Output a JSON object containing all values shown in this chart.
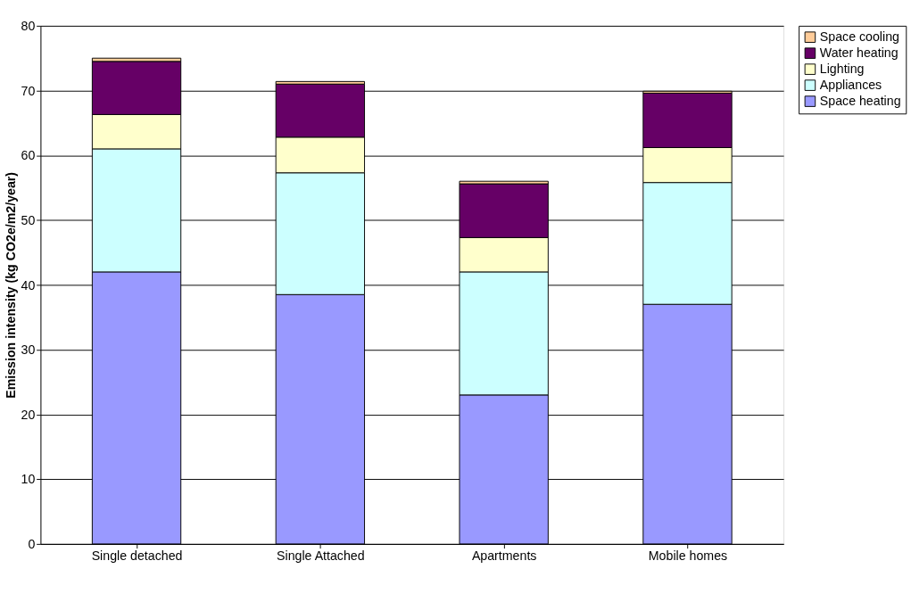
{
  "chart_data": {
    "type": "bar",
    "stacked": true,
    "ylabel": "Emission intensity (kg CO2e/m2/year)",
    "categories": [
      "Single detached",
      "Single Attached",
      "Apartments",
      "Mobile homes"
    ],
    "series": [
      {
        "name": "Space heating",
        "color": "#9999ff",
        "values": [
          42,
          38.5,
          23,
          37
        ]
      },
      {
        "name": "Appliances",
        "color": "#ccffff",
        "values": [
          19,
          18.8,
          19,
          18.8
        ]
      },
      {
        "name": "Lighting",
        "color": "#ffffcc",
        "values": [
          5.3,
          5.5,
          5.3,
          5.4
        ]
      },
      {
        "name": "Water heating",
        "color": "#660066",
        "values": [
          8.2,
          8.2,
          8.3,
          8.4
        ]
      },
      {
        "name": "Space cooling",
        "color": "#ffcc99",
        "values": [
          0.5,
          0.4,
          0.4,
          0.3
        ]
      }
    ],
    "ylim": [
      0,
      80
    ],
    "yticks": [
      0,
      10,
      20,
      30,
      40,
      50,
      60,
      70,
      80
    ],
    "grid": "y",
    "legend": "right"
  }
}
